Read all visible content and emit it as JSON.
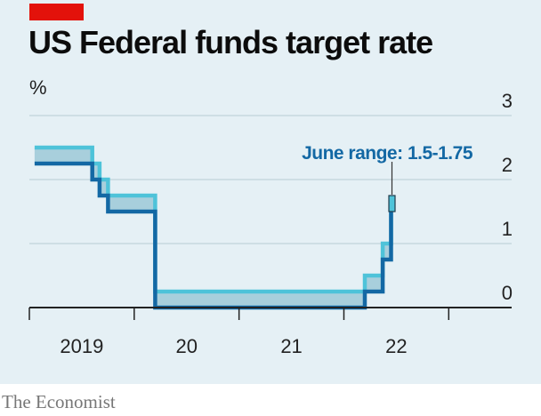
{
  "header": {
    "title": "US Federal funds target rate",
    "unit": "%"
  },
  "footer": {
    "source": "The Economist"
  },
  "colors": {
    "brand_red": "#e3120b",
    "panel_bg": "#e5f0f5",
    "upper_bound": "#4ec3d9",
    "lower_bound": "#1368a4",
    "band_fill": "#a8cfdc",
    "axis": "#222222",
    "grid": "#b8cbd3"
  },
  "chart_data": {
    "type": "line",
    "title": "US Federal funds target rate",
    "ylabel": "%",
    "ylim": [
      0,
      3
    ],
    "yticks": [
      0,
      1,
      2,
      3
    ],
    "xlim": [
      2018.0,
      2022.6
    ],
    "xticks": [
      2018.0,
      2019.0,
      2020.0,
      2021.0,
      2022.0
    ],
    "xtick_labels": [
      {
        "label": "2019",
        "x": 2018.5
      },
      {
        "label": "20",
        "x": 2019.5
      },
      {
        "label": "21",
        "x": 2020.5
      },
      {
        "label": "22",
        "x": 2021.5
      }
    ],
    "grid": true,
    "series": [
      {
        "key": "upper",
        "x": [
          2018.05,
          2018.6,
          2018.6,
          2018.67,
          2018.67,
          2018.75,
          2018.75,
          2019.2,
          2019.2,
          2021.2,
          2021.2,
          2021.37,
          2021.37,
          2021.45,
          2021.45
        ],
        "y": [
          2.5,
          2.5,
          2.25,
          2.25,
          2.0,
          2.0,
          1.75,
          1.75,
          0.25,
          0.25,
          0.5,
          0.5,
          1.0,
          1.0,
          1.75
        ]
      },
      {
        "key": "lower",
        "x": [
          2018.05,
          2018.6,
          2018.6,
          2018.67,
          2018.67,
          2018.75,
          2018.75,
          2019.2,
          2019.2,
          2021.2,
          2021.2,
          2021.37,
          2021.37,
          2021.45,
          2021.45
        ],
        "y": [
          2.25,
          2.25,
          2.0,
          2.0,
          1.75,
          1.75,
          1.5,
          1.5,
          0.0,
          0.0,
          0.25,
          0.25,
          0.75,
          0.75,
          1.5
        ]
      }
    ],
    "annotation": {
      "text": "June range: 1.5-1.75",
      "x": 2021.45,
      "y_low": 1.5,
      "y_high": 1.75
    }
  }
}
